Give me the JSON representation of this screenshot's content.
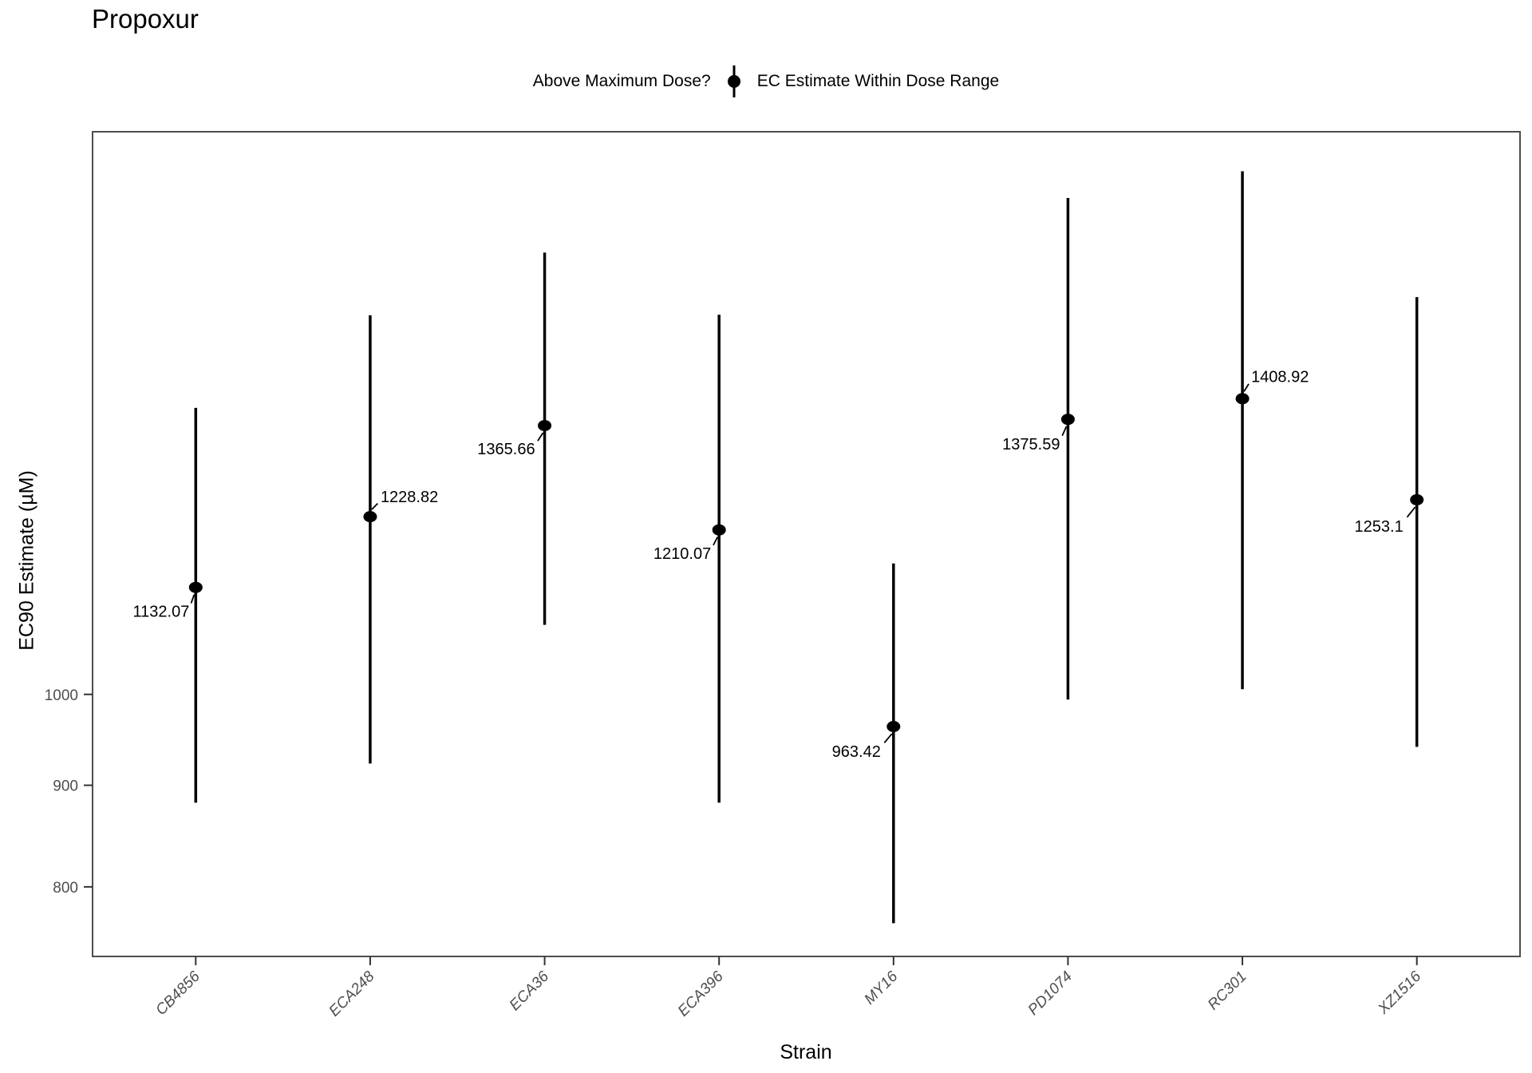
{
  "title": "Propoxur",
  "legend": {
    "title": "Above Maximum Dose?",
    "items": [
      {
        "label": "EC Estimate Within Dose Range",
        "symbol": "pointrange-icon"
      }
    ]
  },
  "axes": {
    "x": {
      "title": "Strain"
    },
    "y": {
      "title": "EC90 Estimate (µM)"
    }
  },
  "colors": {
    "data": "#000000",
    "axis_text": "#4d4d4d",
    "panel_border": "#4d4d4d",
    "background": "#ffffff"
  },
  "chart_data": {
    "type": "pointrange",
    "title": "Propoxur",
    "xlabel": "Strain",
    "ylabel": "EC90 Estimate (µM)",
    "legend_title": "Above Maximum Dose?",
    "legend_label": "EC Estimate Within Dose Range",
    "y_scale": "log10",
    "y_ticks": [
      1000,
      900,
      800
    ],
    "y_domain": [
      738,
      1920
    ],
    "grid": "off",
    "categories": [
      "CB4856",
      "ECA248",
      "ECA36",
      "ECA396",
      "MY16",
      "PD1074",
      "RC301",
      "XZ1516"
    ],
    "series": [
      {
        "strain": "CB4856",
        "estimate": 1132.07,
        "lower": 882,
        "upper": 1394,
        "label": "1132.07",
        "label_dx": -8,
        "label_dy": 30
      },
      {
        "strain": "ECA248",
        "estimate": 1228.82,
        "lower": 923,
        "upper": 1552,
        "label": "1228.82",
        "label_dx": 13,
        "label_dy": -25
      },
      {
        "strain": "ECA36",
        "estimate": 1365.66,
        "lower": 1084,
        "upper": 1669,
        "label": "1365.66",
        "label_dx": -12,
        "label_dy": 29
      },
      {
        "strain": "ECA396",
        "estimate": 1210.07,
        "lower": 882,
        "upper": 1553,
        "label": "1210.07",
        "label_dx": -10,
        "label_dy": 29
      },
      {
        "strain": "MY16",
        "estimate": 963.42,
        "lower": 767,
        "upper": 1164,
        "label": "963.42",
        "label_dx": -16,
        "label_dy": 31
      },
      {
        "strain": "PD1074",
        "estimate": 1375.59,
        "lower": 994,
        "upper": 1778,
        "label": "1375.59",
        "label_dx": -10,
        "label_dy": 31
      },
      {
        "strain": "RC301",
        "estimate": 1408.92,
        "lower": 1006,
        "upper": 1834,
        "label": "1408.92",
        "label_dx": 11,
        "label_dy": -28
      },
      {
        "strain": "XZ1516",
        "estimate": 1253.1,
        "lower": 941,
        "upper": 1585,
        "label": "1253.1",
        "label_dx": -17,
        "label_dy": 33
      }
    ]
  }
}
